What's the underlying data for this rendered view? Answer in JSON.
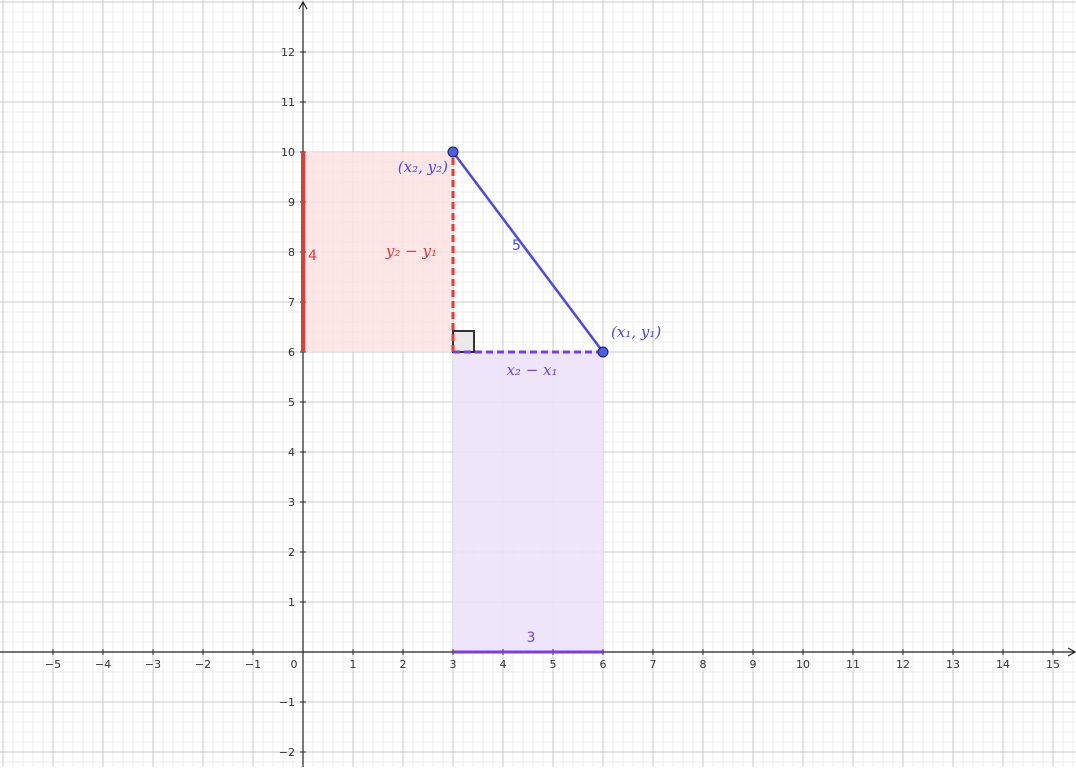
{
  "chart_data": {
    "type": "diagram",
    "title": "",
    "xlabel": "",
    "ylabel": "",
    "xlim": [
      -6,
      15.5
    ],
    "ylim": [
      -2.3,
      13
    ],
    "grid": true,
    "x_ticks": [
      -5,
      -4,
      -3,
      -2,
      -1,
      0,
      1,
      2,
      3,
      4,
      5,
      6,
      7,
      8,
      9,
      10,
      11,
      12,
      13,
      14,
      15
    ],
    "y_ticks": [
      -2,
      -1,
      1,
      2,
      3,
      4,
      5,
      6,
      7,
      8,
      9,
      10,
      11,
      12
    ],
    "points": [
      {
        "id": "p1",
        "x": 6,
        "y": 6,
        "label": "(x₁, y₁)"
      },
      {
        "id": "p2",
        "x": 3,
        "y": 10,
        "label": "(x₂, y₂)"
      }
    ],
    "hypotenuse": {
      "from": [
        6,
        6
      ],
      "to": [
        3,
        10
      ],
      "length_label": "5"
    },
    "vertical_leg": {
      "from": [
        3,
        6
      ],
      "to": [
        3,
        10
      ],
      "label": "y₂ − y₁"
    },
    "horizontal_leg": {
      "from": [
        3,
        6
      ],
      "to": [
        6,
        6
      ],
      "label": "x₂ − x₁"
    },
    "y_projection": {
      "x": 0,
      "from": 6,
      "to": 10,
      "length_label": "4"
    },
    "x_projection": {
      "y": 0,
      "from": 3,
      "to": 6,
      "length_label": "3"
    },
    "right_angle_at": [
      3,
      6
    ],
    "colors": {
      "hypotenuse": "#4a4ae8",
      "point_fill": "#4a60e0",
      "vertical": "#e53935",
      "vertical_fill": "#fde2e2",
      "horizontal": "#7a3fd8",
      "horizontal_fill": "#ece2fb",
      "label_blue": "#4a4ae8"
    }
  }
}
